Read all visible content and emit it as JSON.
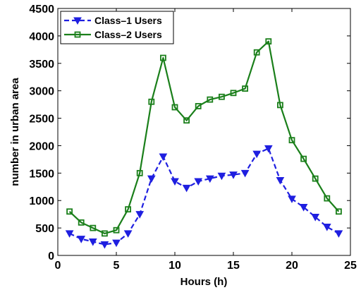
{
  "chart_data": {
    "type": "line",
    "title": "",
    "xlabel": "Hours (h)",
    "ylabel": "number in urban area",
    "xlim": [
      0,
      25
    ],
    "ylim": [
      0,
      4500
    ],
    "xticks": [
      0,
      5,
      10,
      15,
      20,
      25
    ],
    "yticks": [
      0,
      500,
      1000,
      1500,
      2000,
      2500,
      3000,
      3500,
      4000,
      4500
    ],
    "grid": false,
    "legend_position": "top-left",
    "x": [
      1,
      2,
      3,
      4,
      5,
      6,
      7,
      8,
      9,
      10,
      11,
      12,
      13,
      14,
      15,
      16,
      17,
      18,
      19,
      20,
      21,
      22,
      23,
      24
    ],
    "series": [
      {
        "name": "Class–1 Users",
        "color": "#1f1fe0",
        "line_style": "dashed",
        "marker": "triangle-down",
        "values": [
          400,
          300,
          250,
          200,
          230,
          400,
          750,
          1400,
          1800,
          1350,
          1230,
          1350,
          1400,
          1450,
          1470,
          1500,
          1850,
          1950,
          1370,
          1030,
          880,
          700,
          520,
          400
        ]
      },
      {
        "name": "Class–2 Users",
        "color": "#1a7f1a",
        "line_style": "solid",
        "marker": "square",
        "values": [
          800,
          600,
          500,
          400,
          460,
          840,
          1500,
          2800,
          3600,
          2700,
          2460,
          2720,
          2840,
          2890,
          2960,
          3040,
          3700,
          3900,
          2740,
          2100,
          1760,
          1400,
          1040,
          800
        ]
      }
    ]
  }
}
